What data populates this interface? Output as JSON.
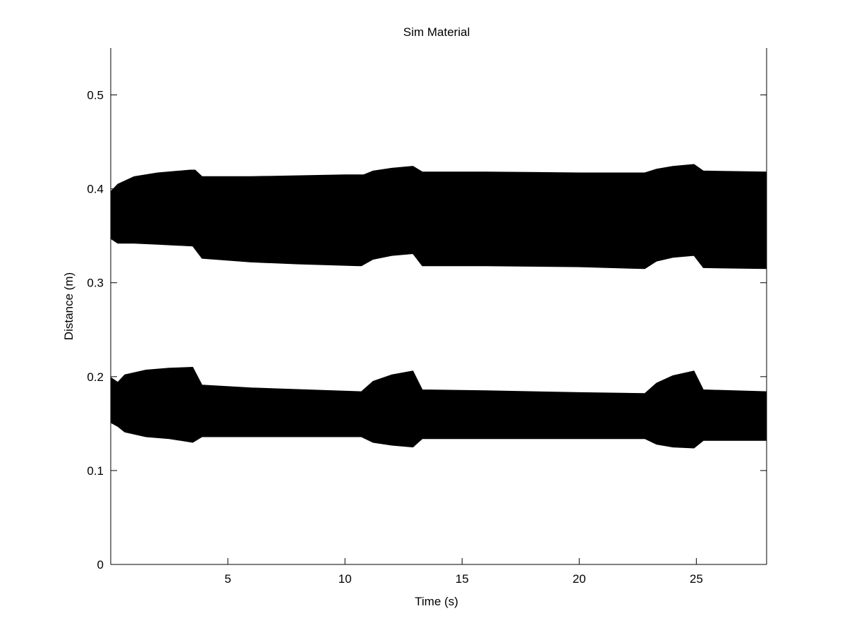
{
  "chart_data": {
    "type": "area",
    "title": "Sim Material",
    "xlabel": "Time (s)",
    "ylabel": "Distance (m)",
    "xlim": [
      0,
      28
    ],
    "ylim": [
      0,
      0.55
    ],
    "xticks": [
      5,
      10,
      15,
      20,
      25
    ],
    "xtick_labels": [
      "5",
      "10",
      "15",
      "20",
      "25"
    ],
    "yticks": [
      0,
      0.1,
      0.2,
      0.3,
      0.4,
      0.5
    ],
    "ytick_labels": [
      "0",
      "0.1",
      "0.2",
      "0.3",
      "0.4",
      "0.5"
    ],
    "grid": false,
    "fill_color": "#000000",
    "series": [
      {
        "upper": [
          [
            0.0,
            0.397
          ],
          [
            0.3,
            0.405
          ],
          [
            1.0,
            0.413
          ],
          [
            2.0,
            0.417
          ],
          [
            3.4,
            0.42
          ],
          [
            3.6,
            0.42
          ],
          [
            3.9,
            0.413
          ],
          [
            6.0,
            0.413
          ],
          [
            10.0,
            0.415
          ],
          [
            10.8,
            0.415
          ],
          [
            11.2,
            0.419
          ],
          [
            12.0,
            0.422
          ],
          [
            12.9,
            0.424
          ],
          [
            13.3,
            0.418
          ],
          [
            16.0,
            0.418
          ],
          [
            20.0,
            0.417
          ],
          [
            22.8,
            0.417
          ],
          [
            23.3,
            0.421
          ],
          [
            24.0,
            0.424
          ],
          [
            24.9,
            0.426
          ],
          [
            25.3,
            0.419
          ],
          [
            28.0,
            0.418
          ]
        ],
        "lower": [
          [
            0.0,
            0.347
          ],
          [
            0.3,
            0.342
          ],
          [
            1.0,
            0.342
          ],
          [
            2.0,
            0.341
          ],
          [
            3.5,
            0.339
          ],
          [
            3.9,
            0.326
          ],
          [
            6.0,
            0.322
          ],
          [
            8.0,
            0.32
          ],
          [
            10.7,
            0.318
          ],
          [
            11.2,
            0.325
          ],
          [
            12.0,
            0.329
          ],
          [
            12.9,
            0.331
          ],
          [
            13.3,
            0.318
          ],
          [
            16.0,
            0.318
          ],
          [
            20.0,
            0.317
          ],
          [
            22.8,
            0.315
          ],
          [
            23.3,
            0.323
          ],
          [
            24.0,
            0.327
          ],
          [
            24.9,
            0.329
          ],
          [
            25.3,
            0.316
          ],
          [
            28.0,
            0.315
          ]
        ]
      },
      {
        "upper": [
          [
            0.0,
            0.199
          ],
          [
            0.3,
            0.194
          ],
          [
            0.6,
            0.202
          ],
          [
            1.5,
            0.207
          ],
          [
            2.5,
            0.209
          ],
          [
            3.5,
            0.21
          ],
          [
            3.9,
            0.191
          ],
          [
            6.0,
            0.188
          ],
          [
            10.7,
            0.184
          ],
          [
            11.2,
            0.195
          ],
          [
            12.0,
            0.202
          ],
          [
            12.9,
            0.206
          ],
          [
            13.3,
            0.186
          ],
          [
            16.0,
            0.185
          ],
          [
            20.0,
            0.183
          ],
          [
            22.8,
            0.182
          ],
          [
            23.3,
            0.193
          ],
          [
            24.0,
            0.201
          ],
          [
            24.9,
            0.206
          ],
          [
            25.3,
            0.186
          ],
          [
            28.0,
            0.184
          ]
        ],
        "lower": [
          [
            0.0,
            0.151
          ],
          [
            0.3,
            0.147
          ],
          [
            0.6,
            0.141
          ],
          [
            1.5,
            0.136
          ],
          [
            2.5,
            0.134
          ],
          [
            3.5,
            0.13
          ],
          [
            3.9,
            0.136
          ],
          [
            6.0,
            0.136
          ],
          [
            10.7,
            0.136
          ],
          [
            11.2,
            0.13
          ],
          [
            12.0,
            0.127
          ],
          [
            12.9,
            0.125
          ],
          [
            13.3,
            0.134
          ],
          [
            16.0,
            0.134
          ],
          [
            20.0,
            0.134
          ],
          [
            22.8,
            0.134
          ],
          [
            23.3,
            0.128
          ],
          [
            24.0,
            0.125
          ],
          [
            24.9,
            0.124
          ],
          [
            25.3,
            0.132
          ],
          [
            28.0,
            0.132
          ]
        ]
      }
    ]
  }
}
